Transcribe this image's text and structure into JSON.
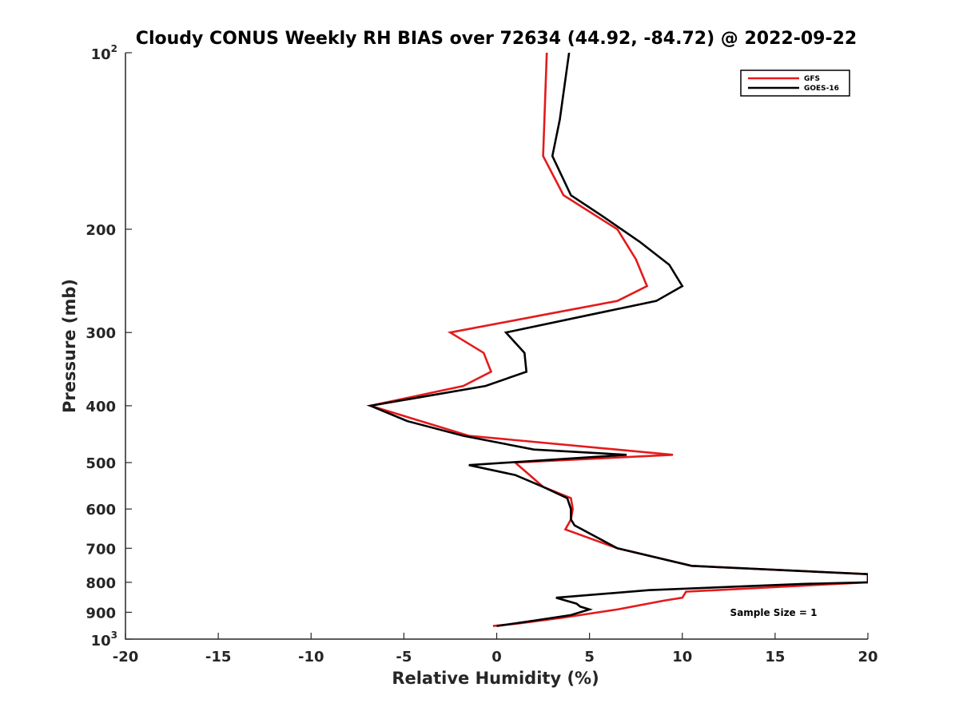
{
  "chart_data": {
    "type": "line",
    "title": "Cloudy CONUS Weekly RH BIAS over 72634 (44.92, -84.72) @ 2022-09-22",
    "xlabel": "Relative Humidity (%)",
    "ylabel": "Pressure (mb)",
    "xlim": [
      -20,
      20
    ],
    "ylim": [
      1000,
      100
    ],
    "y_scale": "log",
    "y_reversed": true,
    "grid": false,
    "legend_position": "top-right",
    "x_ticks": [
      {
        "value": -20,
        "label": "-20"
      },
      {
        "value": -15,
        "label": "-15"
      },
      {
        "value": -10,
        "label": "-10"
      },
      {
        "value": -5,
        "label": "-5"
      },
      {
        "value": 0,
        "label": "0"
      },
      {
        "value": 5,
        "label": "5"
      },
      {
        "value": 10,
        "label": "10"
      },
      {
        "value": 15,
        "label": "15"
      },
      {
        "value": 20,
        "label": "20"
      }
    ],
    "y_ticks": [
      {
        "value": 100,
        "label": "",
        "base": "10",
        "exp": "2"
      },
      {
        "value": 200,
        "label": "200"
      },
      {
        "value": 300,
        "label": "300"
      },
      {
        "value": 400,
        "label": "400"
      },
      {
        "value": 500,
        "label": "500"
      },
      {
        "value": 600,
        "label": "600"
      },
      {
        "value": 700,
        "label": "700"
      },
      {
        "value": 800,
        "label": "800"
      },
      {
        "value": 900,
        "label": "900"
      },
      {
        "value": 1000,
        "label": "",
        "base": "10",
        "exp": "3"
      }
    ],
    "annotation": "Sample Size = 1",
    "series": [
      {
        "name": "GFS",
        "color": "#e41a1c",
        "points": [
          [
            2.7,
            100
          ],
          [
            2.5,
            150
          ],
          [
            3.6,
            175
          ],
          [
            6.5,
            200
          ],
          [
            7.5,
            225
          ],
          [
            8.1,
            250
          ],
          [
            6.5,
            265
          ],
          [
            2.5,
            280
          ],
          [
            -2.5,
            300
          ],
          [
            -0.7,
            325
          ],
          [
            -0.3,
            350
          ],
          [
            -1.8,
            370
          ],
          [
            -6.8,
            400
          ],
          [
            -1.5,
            450
          ],
          [
            9.5,
            485
          ],
          [
            1.0,
            500
          ],
          [
            2.5,
            550
          ],
          [
            4.0,
            575
          ],
          [
            4.1,
            600
          ],
          [
            4.0,
            625
          ],
          [
            3.7,
            650
          ],
          [
            6.5,
            700
          ],
          [
            10.5,
            750
          ],
          [
            20.0,
            775
          ],
          [
            20.0,
            800
          ],
          [
            10.2,
            830
          ],
          [
            10.0,
            850
          ],
          [
            9.0,
            860
          ],
          [
            6.5,
            890
          ],
          [
            3.5,
            920
          ],
          [
            1.2,
            940
          ],
          [
            -0.2,
            950
          ]
        ]
      },
      {
        "name": "GOES-16",
        "color": "#000000",
        "points": [
          [
            3.9,
            100
          ],
          [
            3.4,
            130
          ],
          [
            3.0,
            150
          ],
          [
            4.0,
            175
          ],
          [
            5.7,
            190
          ],
          [
            7.7,
            210
          ],
          [
            9.3,
            230
          ],
          [
            10.0,
            250
          ],
          [
            8.6,
            265
          ],
          [
            5.0,
            280
          ],
          [
            0.5,
            300
          ],
          [
            1.5,
            325
          ],
          [
            1.6,
            350
          ],
          [
            -0.6,
            370
          ],
          [
            -6.8,
            400
          ],
          [
            -4.8,
            425
          ],
          [
            -1.8,
            450
          ],
          [
            2.0,
            475
          ],
          [
            7.0,
            485
          ],
          [
            -1.5,
            505
          ],
          [
            1.0,
            525
          ],
          [
            2.5,
            550
          ],
          [
            3.8,
            575
          ],
          [
            4.0,
            600
          ],
          [
            4.0,
            625
          ],
          [
            4.2,
            640
          ],
          [
            6.5,
            700
          ],
          [
            10.5,
            750
          ],
          [
            20.0,
            775
          ],
          [
            20.0,
            800
          ],
          [
            16.5,
            805
          ],
          [
            8.2,
            825
          ],
          [
            3.2,
            850
          ],
          [
            4.3,
            870
          ],
          [
            4.5,
            880
          ],
          [
            5.0,
            890
          ],
          [
            4.0,
            910
          ],
          [
            2.0,
            930
          ],
          [
            0.0,
            950
          ]
        ]
      }
    ]
  }
}
